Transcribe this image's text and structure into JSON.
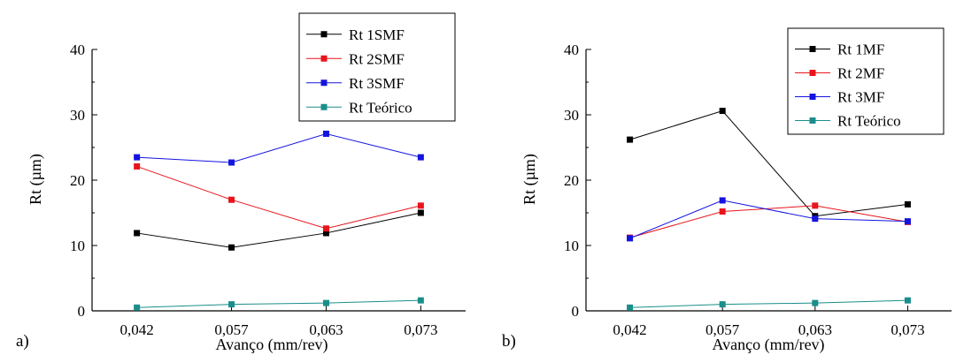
{
  "chart_data": [
    {
      "type": "line",
      "panel_label": "a)",
      "xlabel": "Avanço (mm/rev)",
      "ylabel": "Rt (µm)",
      "categories": [
        "0,042",
        "0,057",
        "0,063",
        "0,073"
      ],
      "ylim": [
        0,
        40
      ],
      "yticks": [
        "0",
        "10",
        "20",
        "30",
        "40"
      ],
      "legend_position": "top-right",
      "series": [
        {
          "name": "Rt 1SMF",
          "color": "#000000",
          "values": [
            11.9,
            9.7,
            11.9,
            15.0
          ]
        },
        {
          "name": "Rt 2SMF",
          "color": "#e8141b",
          "values": [
            22.1,
            17.0,
            12.6,
            16.1
          ]
        },
        {
          "name": "Rt 3SMF",
          "color": "#1414e0",
          "values": [
            23.5,
            22.7,
            27.1,
            23.5
          ]
        },
        {
          "name": "Rt Teórico",
          "color": "#1a8e8a",
          "values": [
            0.5,
            1.0,
            1.2,
            1.6
          ]
        }
      ]
    },
    {
      "type": "line",
      "panel_label": "b)",
      "xlabel": "Avanço (mm/rev)",
      "ylabel": "Rt (µm)",
      "categories": [
        "0,042",
        "0,057",
        "0,063",
        "0,073"
      ],
      "ylim": [
        0,
        40
      ],
      "yticks": [
        "0",
        "10",
        "20",
        "30",
        "40"
      ],
      "legend_position": "top-right",
      "series": [
        {
          "name": "Rt 1MF",
          "color": "#000000",
          "values": [
            26.2,
            30.6,
            14.5,
            16.3
          ]
        },
        {
          "name": "Rt 2MF",
          "color": "#e8141b",
          "values": [
            11.2,
            15.2,
            16.1,
            13.6
          ]
        },
        {
          "name": "Rt 3MF",
          "color": "#1414e0",
          "values": [
            11.1,
            16.9,
            14.1,
            13.7
          ]
        },
        {
          "name": "Rt Teórico",
          "color": "#1a8e8a",
          "values": [
            0.5,
            1.0,
            1.2,
            1.6
          ]
        }
      ]
    }
  ]
}
